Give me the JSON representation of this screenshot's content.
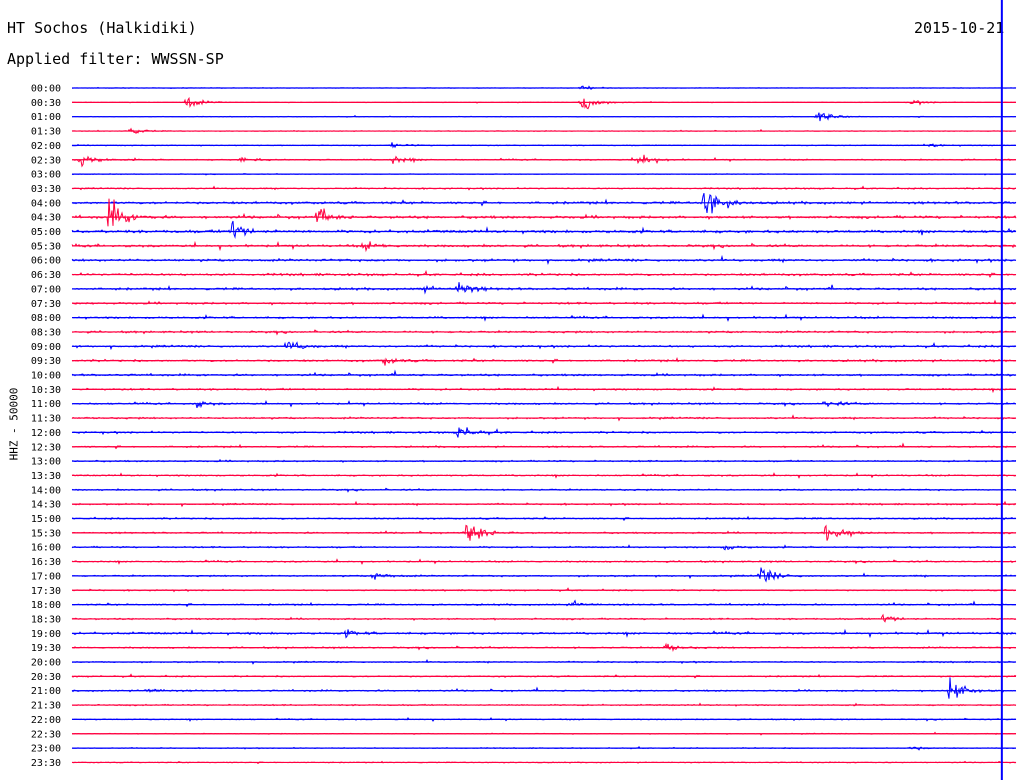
{
  "header": {
    "station": "HT Sochos (Halkidiki)",
    "date": "2015-10-21",
    "filter_label": "Applied filter: WWSSN-SP"
  },
  "colors": {
    "blue": "#0000ff",
    "red": "#ff0040",
    "marker": "#0000ff",
    "background": "#ffffff"
  },
  "chart_data": {
    "type": "line",
    "title": "HT Sochos (Halkidiki)",
    "subtitle": "Applied filter: WWSSN-SP",
    "ylabel": "HHZ - 50000",
    "xlabel": "",
    "grid": false,
    "legend": "none",
    "series_colors_alternate": [
      "blue",
      "red"
    ],
    "categories": [
      "00:00",
      "00:30",
      "01:00",
      "01:30",
      "02:00",
      "02:30",
      "03:00",
      "03:30",
      "04:00",
      "04:30",
      "05:00",
      "05:30",
      "06:00",
      "06:30",
      "07:00",
      "07:30",
      "08:00",
      "08:30",
      "09:00",
      "09:30",
      "10:00",
      "10:30",
      "11:00",
      "11:30",
      "12:00",
      "12:30",
      "13:00",
      "13:30",
      "14:00",
      "14:30",
      "15:00",
      "15:30",
      "16:00",
      "16:30",
      "17:00",
      "17:30",
      "18:00",
      "18:30",
      "19:00",
      "19:30",
      "20:00",
      "20:30",
      "21:00",
      "21:30",
      "22:00",
      "22:30",
      "23:00",
      "23:30"
    ],
    "noise_level": [
      0.12,
      0.12,
      0.15,
      0.15,
      0.2,
      0.3,
      0.15,
      0.3,
      0.55,
      0.6,
      0.65,
      0.55,
      0.55,
      0.5,
      0.5,
      0.45,
      0.45,
      0.45,
      0.45,
      0.45,
      0.45,
      0.4,
      0.4,
      0.4,
      0.4,
      0.35,
      0.35,
      0.35,
      0.35,
      0.35,
      0.35,
      0.35,
      0.35,
      0.35,
      0.35,
      0.3,
      0.35,
      0.35,
      0.5,
      0.35,
      0.3,
      0.3,
      0.35,
      0.3,
      0.25,
      0.2,
      0.2,
      0.2
    ],
    "time_end_fraction": 0.985,
    "events": [
      {
        "row": 0,
        "x": 0.54,
        "amp": 0.4
      },
      {
        "row": 1,
        "x": 0.12,
        "amp": 1.4
      },
      {
        "row": 1,
        "x": 0.54,
        "amp": 2.2
      },
      {
        "row": 1,
        "x": 0.89,
        "amp": 0.5
      },
      {
        "row": 2,
        "x": 0.79,
        "amp": 1.2
      },
      {
        "row": 3,
        "x": 0.06,
        "amp": 0.8
      },
      {
        "row": 4,
        "x": 0.34,
        "amp": 0.5
      },
      {
        "row": 4,
        "x": 0.91,
        "amp": 0.4
      },
      {
        "row": 5,
        "x": 0.01,
        "amp": 1.3
      },
      {
        "row": 5,
        "x": 0.18,
        "amp": 0.5
      },
      {
        "row": 5,
        "x": 0.34,
        "amp": 0.8
      },
      {
        "row": 5,
        "x": 0.6,
        "amp": 1.5
      },
      {
        "row": 8,
        "x": 0.67,
        "amp": 4.5
      },
      {
        "row": 9,
        "x": 0.04,
        "amp": 3.6
      },
      {
        "row": 9,
        "x": 0.26,
        "amp": 1.4
      },
      {
        "row": 10,
        "x": 0.17,
        "amp": 2.3
      },
      {
        "row": 11,
        "x": 0.31,
        "amp": 0.8
      },
      {
        "row": 14,
        "x": 0.41,
        "amp": 1.5
      },
      {
        "row": 14,
        "x": 0.37,
        "amp": 0.6
      },
      {
        "row": 18,
        "x": 0.23,
        "amp": 1.2
      },
      {
        "row": 19,
        "x": 0.33,
        "amp": 0.7
      },
      {
        "row": 22,
        "x": 0.13,
        "amp": 0.6
      },
      {
        "row": 22,
        "x": 0.8,
        "amp": 0.6
      },
      {
        "row": 24,
        "x": 0.41,
        "amp": 1.6
      },
      {
        "row": 31,
        "x": 0.42,
        "amp": 2.8
      },
      {
        "row": 31,
        "x": 0.8,
        "amp": 2.5
      },
      {
        "row": 32,
        "x": 0.69,
        "amp": 0.6
      },
      {
        "row": 34,
        "x": 0.32,
        "amp": 0.8
      },
      {
        "row": 34,
        "x": 0.73,
        "amp": 1.8
      },
      {
        "row": 36,
        "x": 0.53,
        "amp": 0.6
      },
      {
        "row": 37,
        "x": 0.86,
        "amp": 1.0
      },
      {
        "row": 38,
        "x": 0.29,
        "amp": 0.6
      },
      {
        "row": 39,
        "x": 0.63,
        "amp": 0.7
      },
      {
        "row": 42,
        "x": 0.08,
        "amp": 0.5
      },
      {
        "row": 42,
        "x": 0.93,
        "amp": 2.8
      },
      {
        "row": 46,
        "x": 0.89,
        "amp": 0.4
      }
    ]
  }
}
